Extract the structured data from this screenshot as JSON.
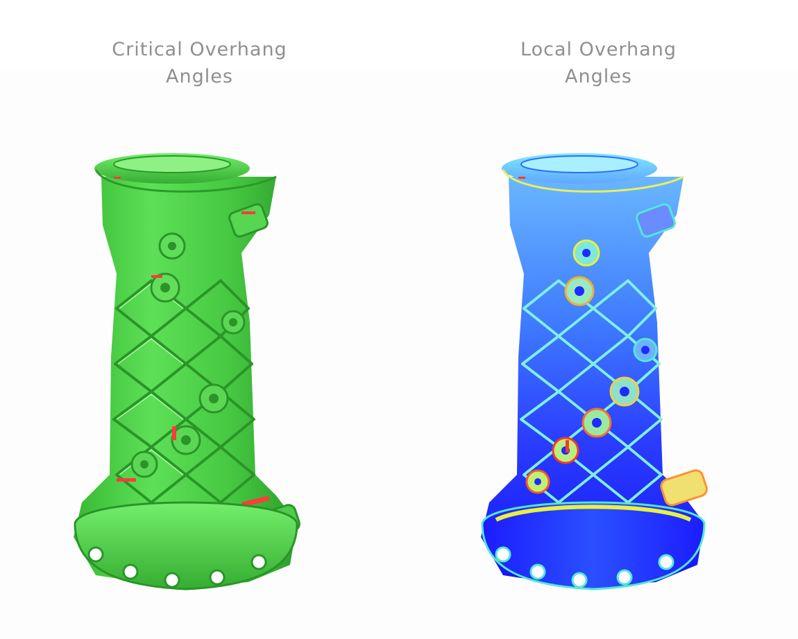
{
  "panels": [
    {
      "title_line1": "Critical Overhang",
      "title_line2": "Angles",
      "colormap": {
        "base": "#4fd64a",
        "shade": "#2fa42c",
        "highlight": "#a6f59c",
        "critical": "#ff3b3b"
      }
    },
    {
      "title_line1": "Local Overhang",
      "title_line2": "Angles",
      "colormap": {
        "low": "#1818ff",
        "mid_low": "#3aa0ff",
        "mid": "#54e8d0",
        "mid_high": "#e8f040",
        "high": "#ff3a20"
      }
    }
  ]
}
